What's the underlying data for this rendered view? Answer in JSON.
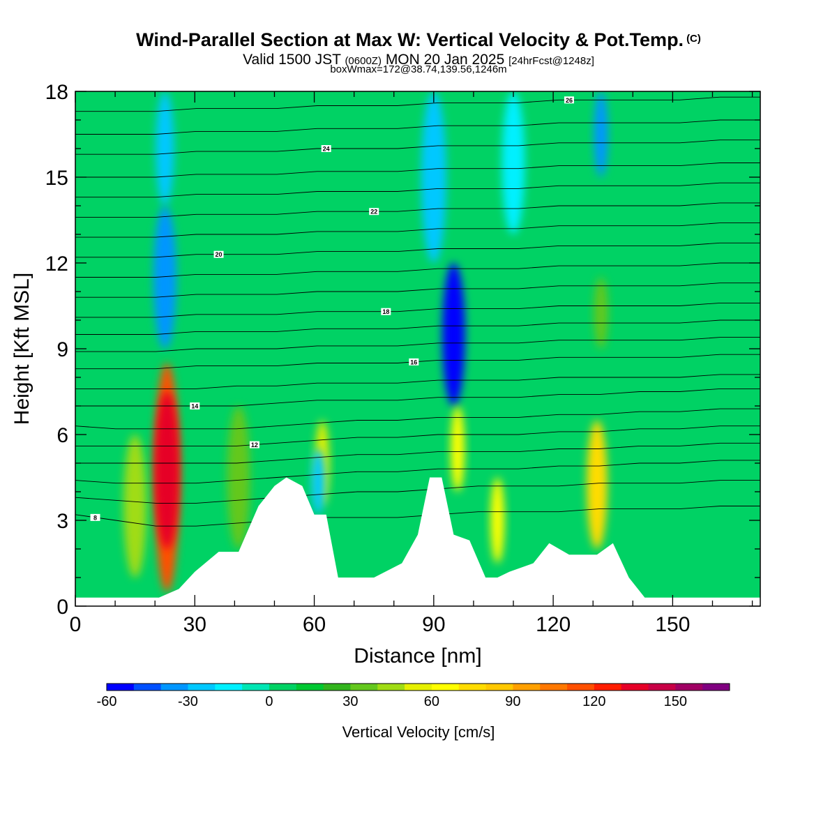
{
  "header": {
    "title": "Wind-Parallel Section at Max W: Vertical Velocity & Pot.Temp.",
    "copyright": "(C)",
    "valid_prefix": "Valid 1500 JST",
    "valid_utc": "(0600Z)",
    "valid_date": "MON 20 Jan 2025",
    "forecast": "[24hrFcst@1248z]",
    "boxline": "boxWmax=172@38.74,139.56,1246m"
  },
  "chart_data": {
    "type": "heatmap",
    "xlabel": "Distance [nm]",
    "ylabel": "Height [Kft MSL]",
    "xlim": [
      0,
      172
    ],
    "ylim": [
      0,
      18
    ],
    "xticks": [
      0,
      30,
      60,
      90,
      120,
      150
    ],
    "yticks": [
      0,
      3,
      6,
      9,
      12,
      15,
      18
    ],
    "colorbar": {
      "title": "Vertical Velocity [cm/s]",
      "levels": [
        -60,
        -50,
        -40,
        -30,
        -20,
        -10,
        0,
        10,
        20,
        30,
        40,
        50,
        60,
        70,
        80,
        90,
        100,
        110,
        120,
        130,
        140,
        150,
        160,
        170
      ],
      "tick_values": [
        -60,
        -30,
        0,
        30,
        60,
        90,
        120,
        150
      ],
      "colors": [
        "#0000ff",
        "#0050ff",
        "#0096ff",
        "#00c8ff",
        "#00f0ff",
        "#00e6b4",
        "#00d264",
        "#00c832",
        "#32b41e",
        "#64c81e",
        "#a0dc14",
        "#e6f000",
        "#ffff00",
        "#ffdc00",
        "#ffc800",
        "#ffa000",
        "#ff7800",
        "#ff5000",
        "#ff1e00",
        "#e60028",
        "#c80046",
        "#a00064",
        "#800080"
      ]
    },
    "background_w": 5,
    "vertical_velocity_cells": [
      {
        "x": 23,
        "bottom": 0.5,
        "top": 8.5,
        "w": 110
      },
      {
        "x": 23,
        "bottom": 2,
        "top": 7.5,
        "w": 130
      },
      {
        "x": 22.5,
        "bottom": 14,
        "top": 18,
        "w": -30
      },
      {
        "x": 22.5,
        "bottom": 9,
        "top": 14,
        "w": -40
      },
      {
        "x": 15,
        "bottom": 1,
        "top": 6,
        "w": 40
      },
      {
        "x": 41,
        "bottom": 2,
        "top": 7,
        "w": 35
      },
      {
        "x": 62,
        "bottom": 3.5,
        "top": 6.5,
        "w": 50
      },
      {
        "x": 61,
        "bottom": 3.2,
        "top": 5.5,
        "w": -30
      },
      {
        "x": 90,
        "bottom": 12,
        "top": 18,
        "w": -30
      },
      {
        "x": 95,
        "bottom": 7,
        "top": 12,
        "w": -60
      },
      {
        "x": 96,
        "bottom": 4,
        "top": 7,
        "w": 60
      },
      {
        "x": 106,
        "bottom": 1.5,
        "top": 4.5,
        "w": 60
      },
      {
        "x": 131,
        "bottom": 2,
        "top": 6.5,
        "w": 70
      },
      {
        "x": 132,
        "bottom": 9,
        "top": 11.5,
        "w": 30
      },
      {
        "x": 132,
        "bottom": 15,
        "top": 18,
        "w": -40
      },
      {
        "x": 110,
        "bottom": 13,
        "top": 18,
        "w": -20
      }
    ],
    "terrain_profile": {
      "x": [
        0,
        21,
        26,
        30,
        36,
        41,
        46,
        50,
        53,
        57,
        60,
        63,
        66,
        75,
        82,
        86,
        89,
        92,
        95,
        99,
        103,
        106,
        109,
        115,
        119,
        124,
        131,
        135,
        139,
        143,
        172
      ],
      "height": [
        0.3,
        0.3,
        0.6,
        1.2,
        1.9,
        1.9,
        3.5,
        4.2,
        4.5,
        4.2,
        3.2,
        3.2,
        1.0,
        1.0,
        1.5,
        2.5,
        4.5,
        4.5,
        2.5,
        2.3,
        1.0,
        1.0,
        1.2,
        1.5,
        2.2,
        1.8,
        1.8,
        2.2,
        1.0,
        0.3,
        0.3
      ]
    },
    "theta_contours": [
      {
        "label": "8",
        "y": [
          3.2,
          3.0,
          2.8,
          2.8,
          2.9,
          3.0,
          3.1,
          3.1,
          3.1,
          3.2,
          3.3,
          3.3,
          3.3,
          3.4,
          3.4,
          3.4,
          3.5,
          3.5
        ],
        "label_x": 5
      },
      {
        "label": "",
        "y": [
          3.8,
          3.7,
          3.6,
          3.6,
          3.7,
          3.8,
          3.9,
          4.0,
          4.0,
          4.1,
          4.2,
          4.2,
          4.2,
          4.3,
          4.3,
          4.3,
          4.4,
          4.4
        ]
      },
      {
        "label": "",
        "y": [
          4.4,
          4.3,
          4.3,
          4.3,
          4.4,
          4.5,
          4.6,
          4.7,
          4.7,
          4.8,
          4.8,
          4.8,
          4.9,
          4.9,
          5.0,
          5.0,
          5.1,
          5.1
        ]
      },
      {
        "label": "",
        "y": [
          5.0,
          5.0,
          5.0,
          5.0,
          5.0,
          5.1,
          5.2,
          5.3,
          5.3,
          5.4,
          5.4,
          5.4,
          5.5,
          5.5,
          5.6,
          5.6,
          5.7,
          5.7
        ]
      },
      {
        "label": "12",
        "y": [
          5.6,
          5.6,
          5.6,
          5.6,
          5.6,
          5.7,
          5.8,
          5.9,
          5.9,
          6.0,
          6.0,
          6.0,
          6.1,
          6.1,
          6.2,
          6.2,
          6.3,
          6.3
        ],
        "label_x": 45
      },
      {
        "label": "",
        "y": [
          6.3,
          6.2,
          6.2,
          6.2,
          6.2,
          6.3,
          6.4,
          6.5,
          6.5,
          6.6,
          6.6,
          6.6,
          6.7,
          6.7,
          6.8,
          6.8,
          6.9,
          6.9
        ]
      },
      {
        "label": "14",
        "y": [
          7.0,
          7.0,
          7.0,
          7.0,
          7.0,
          7.1,
          7.2,
          7.2,
          7.2,
          7.3,
          7.3,
          7.3,
          7.4,
          7.4,
          7.5,
          7.5,
          7.6,
          7.6
        ],
        "label_x": 30
      },
      {
        "label": "",
        "y": [
          7.6,
          7.6,
          7.6,
          7.6,
          7.7,
          7.7,
          7.8,
          7.8,
          7.8,
          7.9,
          7.9,
          7.9,
          8.0,
          8.0,
          8.0,
          8.0,
          8.1,
          8.1
        ]
      },
      {
        "label": "16",
        "y": [
          8.3,
          8.3,
          8.3,
          8.4,
          8.4,
          8.4,
          8.5,
          8.5,
          8.5,
          8.6,
          8.6,
          8.6,
          8.7,
          8.7,
          8.7,
          8.7,
          8.8,
          8.8
        ],
        "label_x": 85
      },
      {
        "label": "",
        "y": [
          8.9,
          8.9,
          8.9,
          9.0,
          9.0,
          9.0,
          9.1,
          9.1,
          9.1,
          9.2,
          9.2,
          9.2,
          9.3,
          9.3,
          9.3,
          9.3,
          9.4,
          9.4
        ]
      },
      {
        "label": "",
        "y": [
          9.5,
          9.5,
          9.5,
          9.6,
          9.6,
          9.6,
          9.7,
          9.7,
          9.7,
          9.8,
          9.8,
          9.8,
          9.9,
          9.9,
          9.9,
          9.9,
          10.0,
          10.0
        ]
      },
      {
        "label": "18",
        "y": [
          10.1,
          10.1,
          10.1,
          10.2,
          10.2,
          10.2,
          10.3,
          10.3,
          10.3,
          10.4,
          10.4,
          10.4,
          10.5,
          10.5,
          10.5,
          10.5,
          10.6,
          10.6
        ],
        "label_x": 78
      },
      {
        "label": "",
        "y": [
          10.8,
          10.8,
          10.8,
          10.9,
          10.9,
          10.9,
          11.0,
          11.0,
          11.0,
          11.1,
          11.1,
          11.1,
          11.2,
          11.2,
          11.2,
          11.2,
          11.3,
          11.3
        ]
      },
      {
        "label": "",
        "y": [
          11.5,
          11.5,
          11.5,
          11.6,
          11.6,
          11.6,
          11.7,
          11.7,
          11.7,
          11.8,
          11.8,
          11.8,
          11.9,
          11.9,
          11.9,
          11.9,
          12.0,
          12.0
        ]
      },
      {
        "label": "20",
        "y": [
          12.2,
          12.2,
          12.2,
          12.3,
          12.3,
          12.3,
          12.4,
          12.4,
          12.4,
          12.5,
          12.5,
          12.5,
          12.6,
          12.6,
          12.6,
          12.6,
          12.7,
          12.7
        ],
        "label_x": 36
      },
      {
        "label": "",
        "y": [
          12.9,
          12.9,
          12.9,
          13.0,
          13.0,
          13.0,
          13.1,
          13.1,
          13.1,
          13.2,
          13.2,
          13.2,
          13.3,
          13.3,
          13.3,
          13.3,
          13.4,
          13.4
        ]
      },
      {
        "label": "22",
        "y": [
          13.6,
          13.6,
          13.6,
          13.7,
          13.7,
          13.7,
          13.8,
          13.8,
          13.8,
          13.9,
          13.9,
          13.9,
          14.0,
          14.0,
          14.0,
          14.0,
          14.1,
          14.1
        ],
        "label_x": 75
      },
      {
        "label": "",
        "y": [
          14.3,
          14.3,
          14.3,
          14.4,
          14.4,
          14.4,
          14.5,
          14.5,
          14.5,
          14.6,
          14.6,
          14.6,
          14.7,
          14.7,
          14.7,
          14.7,
          14.8,
          14.8
        ]
      },
      {
        "label": "",
        "y": [
          15.0,
          15.0,
          15.0,
          15.1,
          15.1,
          15.1,
          15.2,
          15.2,
          15.2,
          15.3,
          15.3,
          15.3,
          15.4,
          15.4,
          15.4,
          15.4,
          15.5,
          15.5
        ]
      },
      {
        "label": "24",
        "y": [
          15.8,
          15.8,
          15.8,
          15.9,
          15.9,
          15.9,
          16.0,
          16.0,
          16.0,
          16.1,
          16.1,
          16.1,
          16.2,
          16.2,
          16.2,
          16.2,
          16.3,
          16.3
        ],
        "label_x": 63
      },
      {
        "label": "",
        "y": [
          16.5,
          16.5,
          16.5,
          16.6,
          16.6,
          16.6,
          16.7,
          16.7,
          16.7,
          16.8,
          16.8,
          16.8,
          16.9,
          16.9,
          16.9,
          16.9,
          17.0,
          17.0
        ]
      },
      {
        "label": "26",
        "y": [
          17.3,
          17.3,
          17.3,
          17.4,
          17.4,
          17.4,
          17.5,
          17.5,
          17.5,
          17.6,
          17.6,
          17.6,
          17.7,
          17.7,
          17.7,
          17.7,
          17.8,
          17.8
        ],
        "label_x": 124
      }
    ]
  }
}
